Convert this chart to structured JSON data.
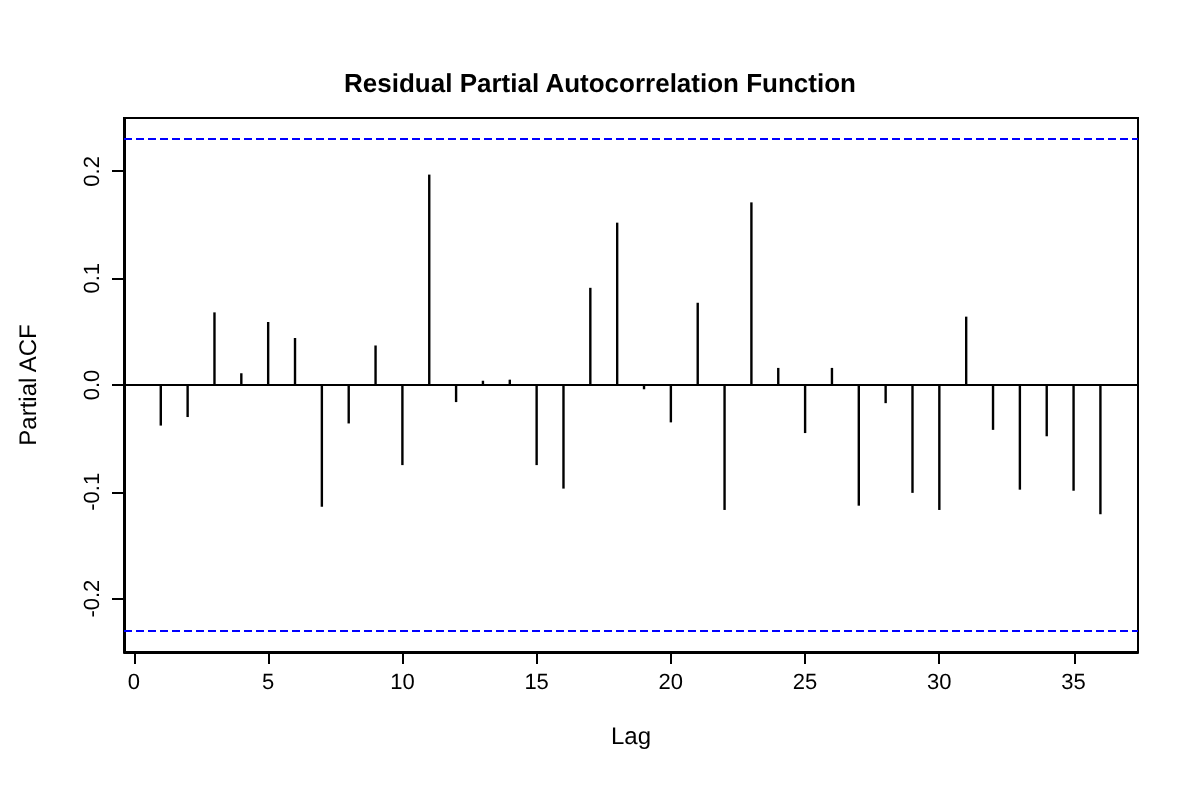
{
  "chart_data": {
    "type": "bar",
    "title": "Residual Partial Autocorrelation Function",
    "xlabel": "Lag",
    "ylabel": "Partial ACF",
    "x": [
      1,
      2,
      3,
      4,
      5,
      6,
      7,
      8,
      9,
      10,
      11,
      12,
      13,
      14,
      15,
      16,
      17,
      18,
      19,
      20,
      21,
      22,
      23,
      24,
      25,
      26,
      27,
      28,
      29,
      30,
      31,
      32,
      33,
      34,
      35,
      36
    ],
    "values": [
      -0.038,
      -0.03,
      0.068,
      0.011,
      0.059,
      0.044,
      -0.114,
      -0.036,
      0.037,
      -0.075,
      0.197,
      -0.016,
      0.004,
      0.005,
      -0.075,
      -0.097,
      0.091,
      0.152,
      -0.004,
      -0.035,
      0.077,
      -0.117,
      0.171,
      0.016,
      -0.045,
      0.016,
      -0.113,
      -0.017,
      -0.101,
      -0.117,
      0.064,
      -0.042,
      -0.098,
      -0.048,
      -0.099,
      -0.121
    ],
    "color": "#000000",
    "xlim": [
      -0.37,
      37.4
    ],
    "xticks": [
      0,
      5,
      10,
      15,
      20,
      25,
      30,
      35
    ],
    "ylim": [
      -0.25,
      0.25
    ],
    "yticks": [
      -0.2,
      -0.1,
      {
        "value": 0,
        "label": "0.0"
      },
      0.1,
      0.2
    ],
    "ref_lines": [
      {
        "axis": "y",
        "value": 0.231,
        "color": "#0000ff",
        "line_style": "dashed"
      },
      {
        "axis": "y",
        "value": -0.231,
        "color": "#0000ff",
        "line_style": "dashed"
      },
      {
        "axis": "y",
        "value": 0,
        "color": "#000000",
        "line_style": "solid"
      }
    ],
    "grid": false
  }
}
